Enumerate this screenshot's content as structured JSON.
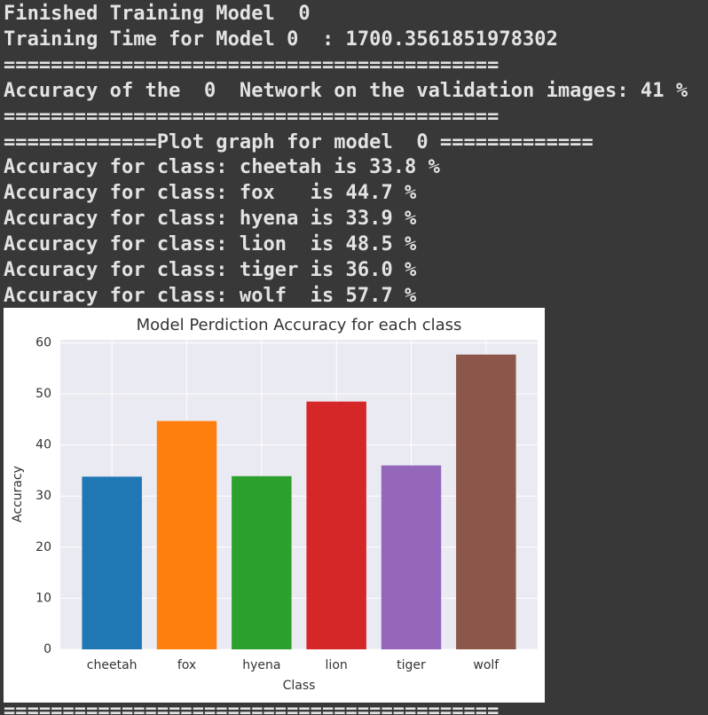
{
  "output_lines": [
    "Finished Training Model  0",
    "Training Time for Model 0  : 1700.3561851978302",
    "==========================================",
    "Accuracy of the  0  Network on the validation images: 41 %",
    "==========================================",
    "=============Plot graph for model  0 =============",
    "Accuracy for class: cheetah is 33.8 %",
    "Accuracy for class: fox   is 44.7 %",
    "Accuracy for class: hyena is 33.9 %",
    "Accuracy for class: lion  is 48.5 %",
    "Accuracy for class: tiger is 36.0 %",
    "Accuracy for class: wolf  is 57.7 %"
  ],
  "trailing_line": "==========================================",
  "chart_data": {
    "type": "bar",
    "title": "Model Perdiction Accuracy for each class",
    "x_label": "Class",
    "y_label": "Accuracy",
    "categories": [
      "cheetah",
      "fox",
      "hyena",
      "lion",
      "tiger",
      "wolf"
    ],
    "values": [
      33.8,
      44.7,
      33.9,
      48.5,
      36.0,
      57.7
    ],
    "colors": [
      "#1f77b4",
      "#ff7f0e",
      "#2ca02c",
      "#d62728",
      "#9467bd",
      "#8c564b"
    ],
    "ylim": [
      0,
      60.6
    ],
    "yticks": [
      0,
      10,
      20,
      30,
      40,
      50,
      60
    ],
    "grid": true
  }
}
